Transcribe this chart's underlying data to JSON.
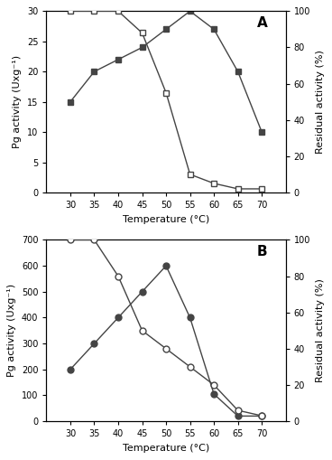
{
  "panel_A": {
    "label": "A",
    "temp": [
      30,
      35,
      40,
      45,
      50,
      55,
      60,
      65,
      70
    ],
    "activity_filled": [
      15,
      20,
      22,
      24,
      27,
      30,
      27,
      20,
      10
    ],
    "activity_marker": "s",
    "activity_filled_face": true,
    "residual_open": [
      100,
      100,
      100,
      88,
      55,
      10,
      5,
      2,
      2
    ],
    "residual_marker": "s",
    "residual_filled_face": false,
    "activity_ylim": [
      0,
      30
    ],
    "activity_yticks": [
      0,
      5,
      10,
      15,
      20,
      25,
      30
    ],
    "residual_ylim": [
      0,
      100
    ],
    "residual_yticks": [
      0,
      20,
      40,
      60,
      80,
      100
    ],
    "xlabel": "Temperature (°C)",
    "ylabel_left": "Pg activity (Uxg⁻¹)",
    "ylabel_right": "Residual activity (%)"
  },
  "panel_B": {
    "label": "B",
    "temp": [
      30,
      35,
      40,
      45,
      50,
      55,
      60,
      65,
      70
    ],
    "activity_filled": [
      200,
      300,
      400,
      500,
      600,
      400,
      105,
      20,
      20
    ],
    "activity_marker": "o",
    "activity_filled_face": true,
    "residual_open": [
      100,
      100,
      80,
      50,
      40,
      30,
      20,
      6,
      3
    ],
    "residual_marker": "o",
    "residual_filled_face": false,
    "activity_ylim": [
      0,
      700
    ],
    "activity_yticks": [
      0,
      100,
      200,
      300,
      400,
      500,
      600,
      700
    ],
    "residual_ylim": [
      0,
      100
    ],
    "residual_yticks": [
      0,
      20,
      40,
      60,
      80,
      100
    ],
    "xlabel": "Temperature (°C)",
    "ylabel_left": "Pg activity (Uxg⁻¹)",
    "ylabel_right": "Residual activity (%)"
  },
  "xlim": [
    25,
    75
  ],
  "xticks": [
    30,
    35,
    40,
    45,
    50,
    55,
    60,
    65,
    70
  ],
  "line_color": "#444444",
  "marker_size": 5,
  "linewidth": 1.0,
  "background_color": "#ffffff",
  "fontsize_label": 8,
  "fontsize_tick": 7,
  "fontsize_panel": 11
}
